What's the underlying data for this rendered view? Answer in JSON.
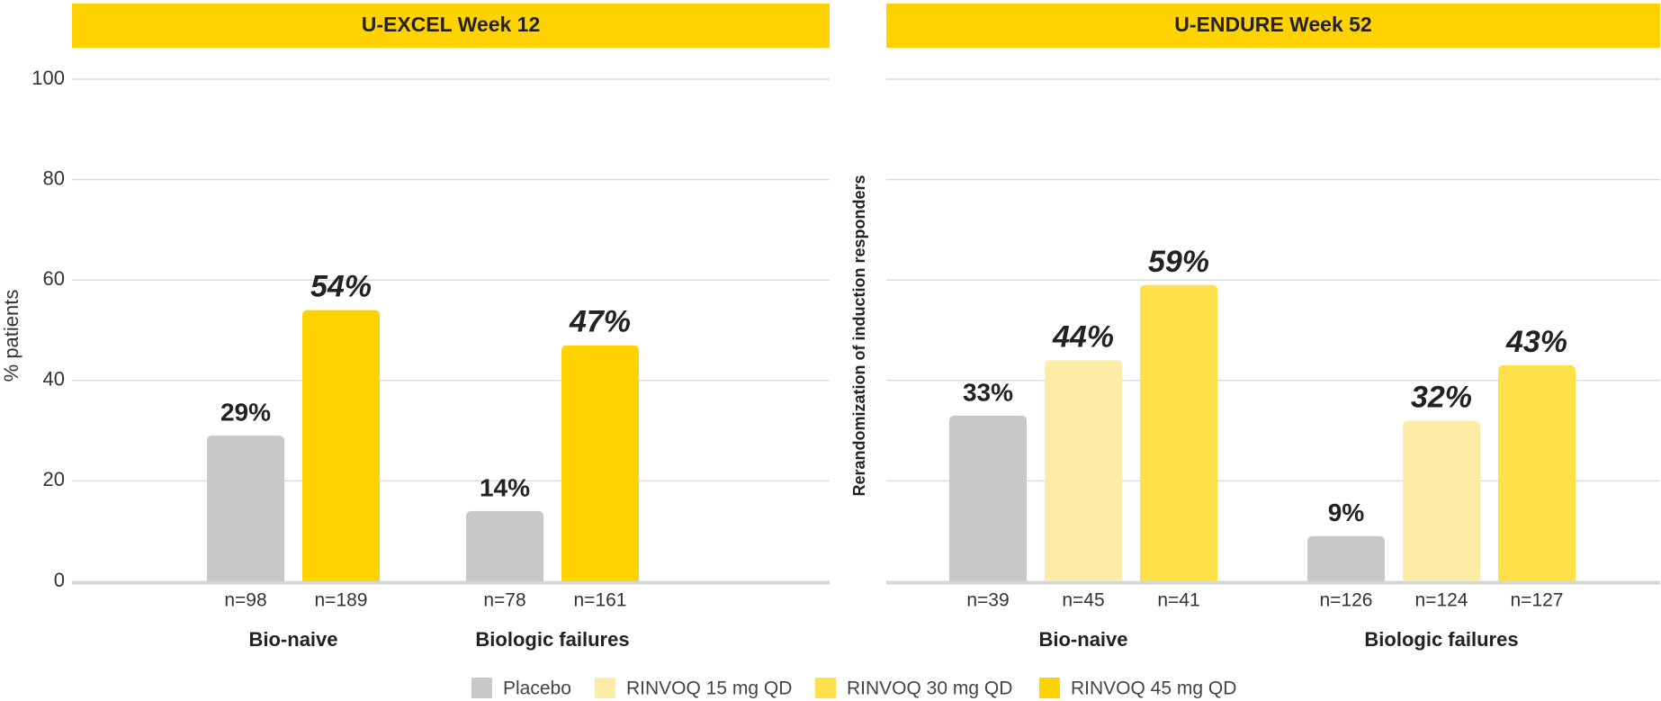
{
  "chart_data": [
    {
      "type": "bar",
      "title": "U-EXCEL Week 12",
      "title_bg": "#ffd200",
      "ylabel": "% patients",
      "categories": [
        "Bio-naive",
        "Biologic failures"
      ],
      "series": [
        {
          "name": "Placebo",
          "color": "#c8c8c8",
          "values": [
            29,
            14
          ],
          "value_labels": [
            "29%",
            "14%"
          ],
          "n_labels": [
            "n=98",
            "n=78"
          ]
        },
        {
          "name": "RINVOQ 45 mg QD",
          "color": "#ffd200",
          "values": [
            54,
            47
          ],
          "value_labels": [
            "54%",
            "47%"
          ],
          "n_labels": [
            "n=189",
            "n=161"
          ]
        }
      ],
      "ylim": [
        0,
        100
      ],
      "yticks": [
        0,
        20,
        40,
        60,
        80,
        100
      ],
      "ytick_labels": true,
      "grid": true
    },
    {
      "type": "bar",
      "title": "U-ENDURE Week 52",
      "title_bg": "#ffd200",
      "ylabel": "Rerandomization of induction responders",
      "categories": [
        "Bio-naive",
        "Biologic failures"
      ],
      "series": [
        {
          "name": "Placebo",
          "color": "#c8c8c8",
          "values": [
            33,
            9
          ],
          "value_labels": [
            "33%",
            "9%"
          ],
          "n_labels": [
            "n=39",
            "n=126"
          ]
        },
        {
          "name": "RINVOQ 15 mg QD",
          "color": "#fdeca6",
          "values": [
            44,
            32
          ],
          "value_labels": [
            "44%",
            "32%"
          ],
          "n_labels": [
            "n=45",
            "n=124"
          ]
        },
        {
          "name": "RINVOQ 30 mg QD",
          "color": "#fde04a",
          "values": [
            59,
            43
          ],
          "value_labels": [
            "59%",
            "43%"
          ],
          "n_labels": [
            "n=41",
            "n=127"
          ]
        }
      ],
      "ylim": [
        0,
        100
      ],
      "yticks": [
        0,
        20,
        40,
        60,
        80,
        100
      ],
      "ytick_labels": false,
      "grid": true
    }
  ],
  "legend": [
    {
      "name": "Placebo",
      "color": "#c8c8c8"
    },
    {
      "name": "RINVOQ 15 mg QD",
      "color": "#fdeca6"
    },
    {
      "name": "RINVOQ 30 mg QD",
      "color": "#fde04a"
    },
    {
      "name": "RINVOQ 45 mg QD",
      "color": "#ffd200"
    }
  ]
}
